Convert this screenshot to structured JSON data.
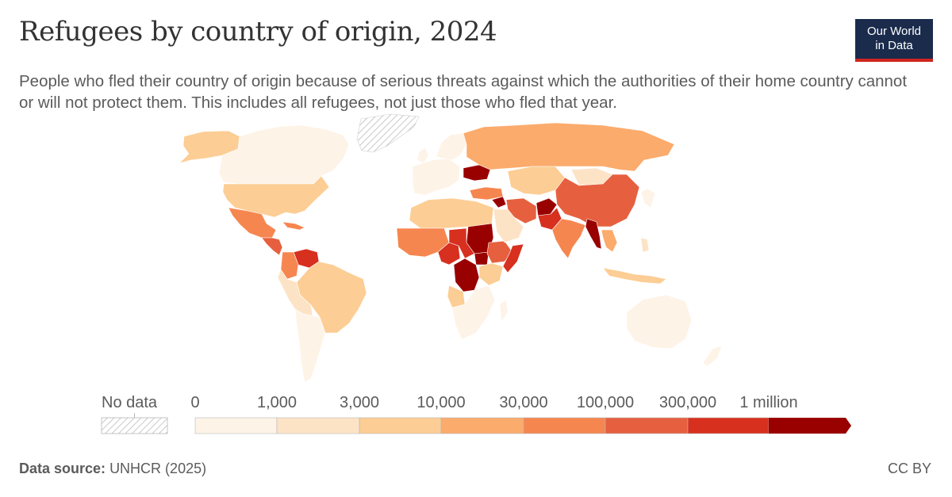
{
  "header": {
    "title": "Refugees by country of origin, 2024",
    "subtitle": "People who fled their country of origin because of serious threats against which the authorities of their home country cannot or will not protect them. This includes all refugees, not just those who fled that year."
  },
  "logo": {
    "line1": "Our World",
    "line2": "in Data"
  },
  "legend": {
    "no_data_label": "No data",
    "bins": [
      {
        "label": "0",
        "color": "#fef3e7"
      },
      {
        "label": "1,000",
        "color": "#fde3c6"
      },
      {
        "label": "3,000",
        "color": "#fccd94"
      },
      {
        "label": "10,000",
        "color": "#fbab6c"
      },
      {
        "label": "30,000",
        "color": "#f68650"
      },
      {
        "label": "100,000",
        "color": "#e6603f"
      },
      {
        "label": "300,000",
        "color": "#d7301f"
      },
      {
        "label": "1 million",
        "color": "#990000"
      }
    ]
  },
  "footer": {
    "source_label": "Data source:",
    "source_value": "UNHCR (2025)",
    "license": "CC BY"
  },
  "colors": {
    "brand": "#1a2b4c",
    "brand_accent": "#ce261e",
    "no_data": "#e4e4e4",
    "ocean": "#ffffff"
  }
}
